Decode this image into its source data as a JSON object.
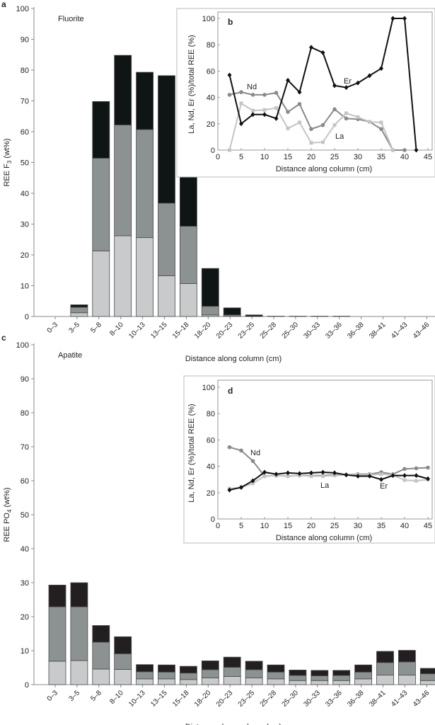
{
  "chart_data": [
    {
      "panel": "a",
      "type": "bar",
      "stacked": true,
      "annotation": "Fluorite",
      "xlabel": "Distance along column (cm)",
      "ylabel": "REE F",
      "ylabel_sub": "3",
      "ylabel_tail": " (wt%)",
      "ylim": [
        0,
        100
      ],
      "yticks": [
        0,
        10,
        20,
        30,
        40,
        50,
        60,
        70,
        80,
        90,
        100
      ],
      "categories": [
        "0–3",
        "3–5",
        "5–8",
        "8–10",
        "10–13",
        "13–15",
        "15–18",
        "18–20",
        "20–23",
        "23–25",
        "25–28",
        "25–30",
        "30–33",
        "33–36",
        "36–38",
        "38–41",
        "41–43",
        "43–46"
      ],
      "series": [
        {
          "values": [
            0,
            1.2,
            21.3,
            26.2,
            25.6,
            13.2,
            10.7,
            0.5,
            0,
            0,
            0,
            0,
            0,
            0,
            0,
            0,
            0,
            0
          ],
          "color": "#c8cacb"
        },
        {
          "values": [
            0,
            1.8,
            30.1,
            36.0,
            35.1,
            23.6,
            18.6,
            2.8,
            0.5,
            0,
            0,
            0,
            0,
            0,
            0,
            0,
            0,
            0
          ],
          "color": "#8c9191"
        },
        {
          "values": [
            0,
            0.8,
            18.4,
            22.6,
            18.6,
            41.4,
            22.4,
            12.3,
            2.3,
            0.5,
            0.1,
            0.1,
            0.1,
            0.1,
            0,
            0,
            0,
            0
          ],
          "color": "#0f1414"
        }
      ]
    },
    {
      "panel": "b",
      "type": "line",
      "xlabel": "Distance along column (cm)",
      "ylabel": "La, Nd, Er (%)/total REE (%)",
      "xlim": [
        0,
        45
      ],
      "ylim": [
        0,
        100
      ],
      "xticks": [
        0,
        5,
        10,
        15,
        20,
        25,
        30,
        35,
        40,
        45
      ],
      "yticks": [
        0,
        20,
        40,
        60,
        80,
        100
      ],
      "series": [
        {
          "name": "Er",
          "x": [
            2.5,
            5,
            7.5,
            10,
            12.5,
            15,
            17.5,
            20,
            22.5,
            25,
            27.5,
            30,
            32.5,
            35,
            37.5,
            40,
            42.5
          ],
          "y": [
            57,
            20,
            27,
            27,
            24,
            53,
            44,
            78,
            74,
            49,
            47.5,
            51,
            56.5,
            62,
            100,
            100,
            0
          ],
          "color": "#111111",
          "marker": "diamond"
        },
        {
          "name": "Nd",
          "x": [
            2.5,
            5,
            7.5,
            10,
            12.5,
            15,
            17.5,
            20,
            22.5,
            25,
            27.5,
            30,
            32.5,
            35,
            37.5,
            40
          ],
          "y": [
            42,
            44,
            42,
            42,
            43.5,
            29,
            35,
            16,
            19,
            31,
            24,
            23.5,
            21.5,
            16,
            0,
            0
          ],
          "color": "#8a8a8a",
          "marker": "circle"
        },
        {
          "name": "La",
          "x": [
            2.5,
            5,
            7.5,
            10,
            12.5,
            15,
            17.5,
            20,
            22.5,
            25,
            27.5,
            30,
            32.5,
            35,
            37.5
          ],
          "y": [
            0,
            35.5,
            30,
            30.5,
            32,
            16.5,
            21,
            5.5,
            6,
            19,
            28,
            25,
            21.5,
            21,
            0
          ],
          "color": "#c4c4c4",
          "marker": "square"
        }
      ]
    },
    {
      "panel": "c",
      "type": "bar",
      "stacked": true,
      "annotation": "Apatite",
      "xlabel": "Distance along column (cm)",
      "ylabel": "REE PO",
      "ylabel_sub": "4",
      "ylabel_tail": " (wt%)",
      "ylim": [
        0,
        100
      ],
      "yticks": [
        0,
        10,
        20,
        30,
        40,
        50,
        60,
        70,
        80,
        90,
        100
      ],
      "categories": [
        "0–3",
        "3–5",
        "5–8",
        "8–10",
        "10–13",
        "13–15",
        "15–18",
        "18–20",
        "20–23",
        "23–25",
        "25–28",
        "25–30",
        "30–33",
        "33–36",
        "36–38",
        "38–41",
        "41–43",
        "43–46"
      ],
      "series": [
        {
          "values": [
            6.9,
            7.1,
            4.6,
            4.5,
            1.7,
            1.7,
            1.5,
            2.0,
            2.4,
            2.0,
            1.7,
            1.2,
            1.2,
            1.2,
            1.7,
            2.8,
            2.8,
            1.2
          ],
          "color": "#c8cacb"
        },
        {
          "values": [
            16.0,
            15.8,
            7.9,
            4.6,
            2.1,
            2.0,
            1.9,
            2.4,
            2.7,
            2.4,
            2.0,
            1.5,
            1.4,
            1.5,
            2.0,
            3.7,
            3.9,
            2.0
          ],
          "color": "#8c9191"
        },
        {
          "values": [
            6.4,
            7.1,
            4.9,
            5.0,
            2.1,
            2.1,
            2.0,
            2.6,
            3.0,
            2.5,
            2.1,
            1.6,
            1.6,
            1.5,
            2.1,
            3.3,
            3.4,
            1.6
          ],
          "color": "#231f20"
        }
      ]
    },
    {
      "panel": "d",
      "type": "line",
      "xlabel": "Distance along column (cm)",
      "ylabel": "La, Nd, Er (%)/total REE (%)",
      "xlim": [
        0,
        45
      ],
      "ylim": [
        0,
        100
      ],
      "xticks": [
        0,
        5,
        10,
        15,
        20,
        25,
        30,
        35,
        40,
        45
      ],
      "yticks": [
        0,
        20,
        40,
        60,
        80,
        100
      ],
      "series": [
        {
          "name": "Nd",
          "x": [
            2.5,
            5,
            7.5,
            10,
            12.5,
            15,
            17.5,
            20,
            22.5,
            25,
            27.5,
            30,
            32.5,
            35,
            37.5,
            40,
            42.5,
            45
          ],
          "y": [
            54.5,
            52,
            44,
            32.5,
            33,
            32.5,
            33,
            33,
            33,
            33.5,
            33.5,
            34,
            34,
            35.5,
            34,
            38,
            38.5,
            39
          ],
          "color": "#8a8a8a",
          "marker": "circle"
        },
        {
          "name": "La",
          "x": [
            2.5,
            5,
            7.5,
            10,
            12.5,
            15,
            17.5,
            20,
            22.5,
            25,
            27.5,
            30,
            32.5,
            35,
            37.5,
            40,
            42.5,
            45
          ],
          "y": [
            23,
            24,
            27,
            32.5,
            33,
            32.5,
            33,
            32.5,
            32.5,
            33,
            33.5,
            33.5,
            33.5,
            34,
            33.5,
            29.5,
            29,
            30
          ],
          "color": "#c4c4c4",
          "marker": "square"
        },
        {
          "name": "Er",
          "x": [
            2.5,
            5,
            7.5,
            10,
            12.5,
            15,
            17.5,
            20,
            22.5,
            25,
            27.5,
            30,
            32.5,
            35,
            37.5,
            40,
            42.5,
            45
          ],
          "y": [
            22,
            24,
            29,
            35.5,
            34,
            35,
            34.5,
            35,
            35.5,
            35,
            33.5,
            32.5,
            32.5,
            30,
            33,
            33,
            33,
            30.5
          ],
          "color": "#111111",
          "marker": "diamond"
        }
      ]
    }
  ]
}
